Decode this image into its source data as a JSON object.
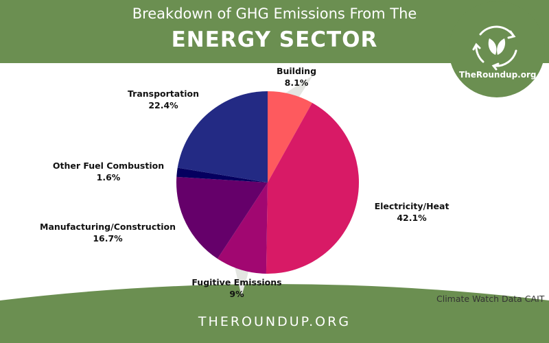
{
  "header": {
    "title_line1": "Breakdown of GHG Emissions From The",
    "title_line2": "ENERGY SECTOR"
  },
  "brand": {
    "name": "TheRoundup.org",
    "logo_icon": "recycle-leaf-icon"
  },
  "source": "Climate Watch Data CAIT",
  "footer": {
    "text": "THEROUNDUP.ORG"
  },
  "colors": {
    "green": "#6b8f51",
    "connector": "#e4e6e2"
  },
  "chart_data": {
    "type": "pie",
    "title": "",
    "slices": [
      {
        "name": "Building",
        "value": 8.1,
        "label": "8.1%",
        "color": "#fe5a5e"
      },
      {
        "name": "Electricity/Heat",
        "value": 42.1,
        "label": "42.1%",
        "color": "#d81a66"
      },
      {
        "name": "Fugitive Emissions",
        "value": 9,
        "label": "9%",
        "color": "#a10771"
      },
      {
        "name": "Manufacturing/Construction",
        "value": 16.7,
        "label": "16.7%",
        "color": "#65006a"
      },
      {
        "name": "Other Fuel Combustion",
        "value": 1.6,
        "label": "1.6%",
        "color": "#05005f"
      },
      {
        "name": "Transportation",
        "value": 22.4,
        "label": "22.4%",
        "color": "#232a84"
      }
    ]
  }
}
